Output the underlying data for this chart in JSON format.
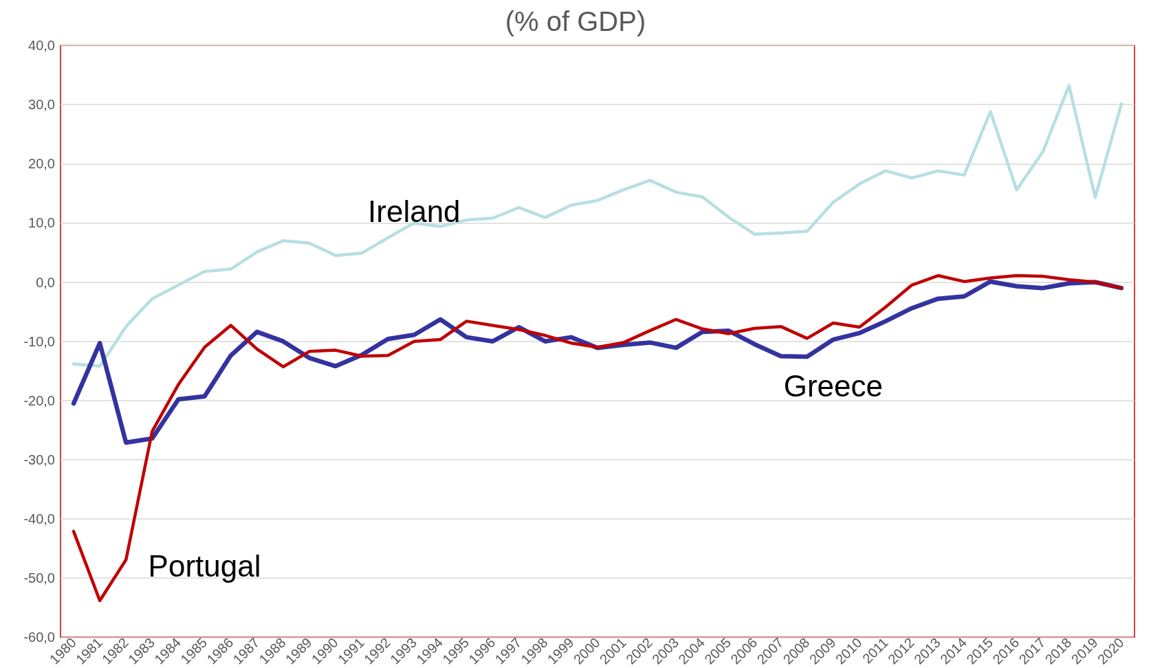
{
  "chart_data": {
    "type": "line",
    "title": "(% of GDP)",
    "categories": [
      "1980",
      "1981",
      "1982",
      "1983",
      "1984",
      "1985",
      "1986",
      "1987",
      "1988",
      "1989",
      "1990",
      "1991",
      "1992",
      "1993",
      "1994",
      "1995",
      "1996",
      "1997",
      "1998",
      "1999",
      "2000",
      "2001",
      "2002",
      "2003",
      "2004",
      "2005",
      "2006",
      "2007",
      "2008",
      "2009",
      "2010",
      "2011",
      "2012",
      "2013",
      "2014",
      "2015",
      "2016",
      "2017",
      "2018",
      "2019",
      "2020"
    ],
    "series": [
      {
        "name": "Ireland",
        "color": "#b7dfe2",
        "values": [
          -13.8,
          -14.2,
          -7.5,
          -2.8,
          -0.5,
          1.8,
          2.2,
          5.1,
          7.0,
          6.6,
          4.5,
          4.9,
          7.5,
          10.0,
          9.4,
          10.5,
          10.8,
          12.6,
          10.9,
          13.0,
          13.8,
          15.6,
          17.2,
          15.2,
          14.4,
          11.0,
          8.1,
          8.3,
          8.6,
          13.5,
          16.6,
          18.8,
          17.6,
          18.8,
          18.1,
          28.8,
          15.6,
          22.0,
          33.2,
          14.3,
          30.1
        ]
      },
      {
        "name": "Greece",
        "color": "#3333a0",
        "values": [
          -20.5,
          -10.3,
          -27.1,
          -26.4,
          -19.8,
          -19.3,
          -12.4,
          -8.4,
          -10.0,
          -12.8,
          -14.2,
          -12.3,
          -9.6,
          -8.9,
          -6.3,
          -9.3,
          -10.0,
          -7.6,
          -10.0,
          -9.3,
          -11.1,
          -10.6,
          -10.2,
          -11.1,
          -8.4,
          -8.2,
          -10.5,
          -12.5,
          -12.6,
          -9.7,
          -8.6,
          -6.6,
          -4.4,
          -2.8,
          -2.4,
          0.1,
          -0.7,
          -1.0,
          -0.2,
          0.0,
          -1.0
        ]
      },
      {
        "name": "Portugal",
        "color": "#c00000",
        "values": [
          -42.1,
          -53.8,
          -46.9,
          -25.2,
          -17.3,
          -11.0,
          -7.3,
          -11.3,
          -14.3,
          -11.7,
          -11.5,
          -12.5,
          -12.4,
          -10.0,
          -9.7,
          -6.6,
          -7.3,
          -8.0,
          -9.0,
          -10.3,
          -11.0,
          -10.2,
          -8.2,
          -6.3,
          -7.9,
          -8.7,
          -7.8,
          -7.5,
          -9.5,
          -6.9,
          -7.6,
          -4.2,
          -0.5,
          1.1,
          0.1,
          0.7,
          1.1,
          1.0,
          0.4,
          0.0,
          -1.0
        ]
      }
    ],
    "ylim": [
      -60,
      40
    ],
    "yticks": [
      {
        "value": -60,
        "label": "-60,0"
      },
      {
        "value": -50,
        "label": "-50,0"
      },
      {
        "value": -40,
        "label": "-40,0"
      },
      {
        "value": -30,
        "label": "-30,0"
      },
      {
        "value": -20,
        "label": "-20,0"
      },
      {
        "value": -10,
        "label": "-10,0"
      },
      {
        "value": 0,
        "label": "0,0"
      },
      {
        "value": 10,
        "label": "10,0"
      },
      {
        "value": 20,
        "label": "20,0"
      },
      {
        "value": 30,
        "label": "30,0"
      },
      {
        "value": 40,
        "label": "40,0"
      }
    ],
    "grid": "y",
    "legend": false,
    "marker": "none",
    "line_style": "solid"
  }
}
